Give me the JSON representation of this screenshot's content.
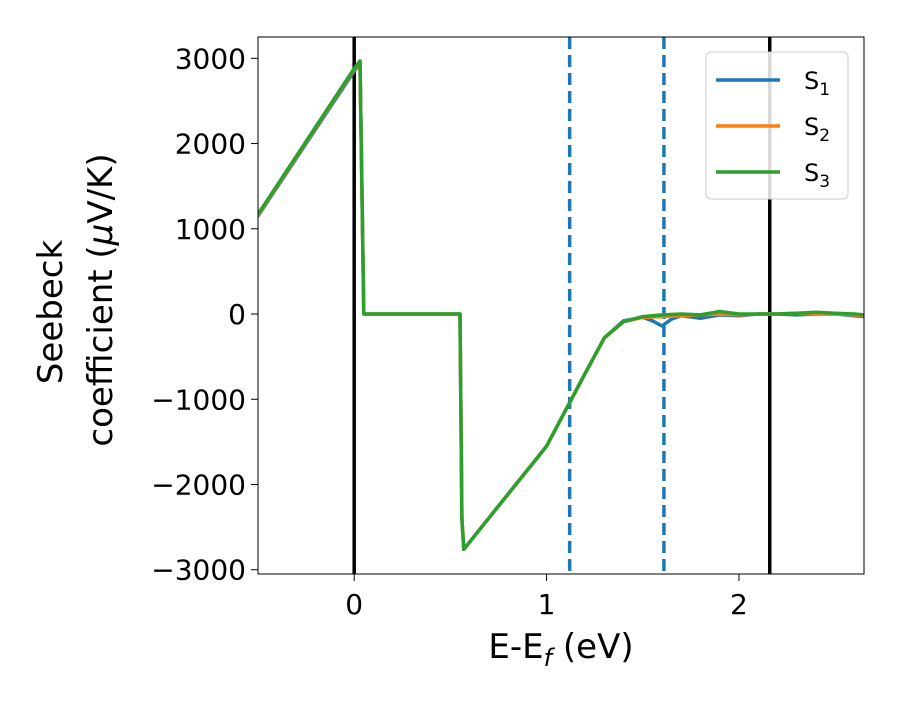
{
  "chart_data": {
    "type": "line",
    "title": "",
    "xlabel": "E-E",
    "xlabel_sub": "f",
    "xlabel_unit": " (eV)",
    "ylabel_line1": "Seebeck",
    "ylabel_line2": "coefficient  (",
    "ylabel_mu": "μ",
    "ylabel_unit": "V/K)",
    "xlim": [
      -0.5,
      2.65
    ],
    "ylim": [
      -3050,
      3250
    ],
    "xticks": [
      0,
      1,
      2
    ],
    "yticks": [
      -3000,
      -2000,
      -1000,
      0,
      1000,
      2000,
      3000
    ],
    "xtick_labels": [
      "0",
      "1",
      "2"
    ],
    "ytick_labels": [
      "−3000",
      "−2000",
      "−1000",
      "0",
      "1000",
      "2000",
      "3000"
    ],
    "grid": false,
    "legend_position": "top-right",
    "vlines": [
      {
        "x": 0.0,
        "style": "solid",
        "color": "#000000"
      },
      {
        "x": 2.16,
        "style": "solid",
        "color": "#000000"
      },
      {
        "x": 1.12,
        "style": "dashed",
        "color": "#1f77b4"
      },
      {
        "x": 1.61,
        "style": "dashed",
        "color": "#1f77b4"
      }
    ],
    "series": [
      {
        "name": "S",
        "sub": "1",
        "color": "#1f77b4",
        "x": [
          -0.5,
          0.0,
          0.03,
          0.05,
          0.55,
          0.56,
          0.57,
          1.0,
          1.2,
          1.3,
          1.4,
          1.5,
          1.55,
          1.6,
          1.65,
          1.7,
          1.8,
          1.9,
          2.0,
          2.1,
          2.2,
          2.3,
          2.4,
          2.5,
          2.6,
          2.65
        ],
        "y": [
          1150,
          2850,
          2950,
          0,
          0,
          -2400,
          -2760,
          -1550,
          -700,
          -280,
          -80,
          -40,
          -80,
          -140,
          -60,
          -20,
          -50,
          -10,
          -20,
          0,
          0,
          -10,
          0,
          0,
          -20,
          -30
        ]
      },
      {
        "name": "S",
        "sub": "2",
        "color": "#ff7f0e",
        "x": [
          -0.5,
          0.0,
          0.03,
          0.05,
          0.55,
          0.56,
          0.57,
          1.0,
          1.2,
          1.3,
          1.4,
          1.5,
          1.6,
          1.7,
          1.8,
          1.9,
          2.0,
          2.1,
          2.2,
          2.3,
          2.4,
          2.5,
          2.6,
          2.65
        ],
        "y": [
          1160,
          2870,
          2960,
          0,
          0,
          -2400,
          -2760,
          -1550,
          -700,
          -280,
          -90,
          -40,
          -30,
          -20,
          -10,
          0,
          -10,
          0,
          0,
          10,
          0,
          0,
          -10,
          -20
        ]
      },
      {
        "name": "S",
        "sub": "3",
        "color": "#2ca02c",
        "x": [
          -0.5,
          0.0,
          0.03,
          0.05,
          0.55,
          0.56,
          0.57,
          1.0,
          1.2,
          1.3,
          1.4,
          1.5,
          1.6,
          1.7,
          1.8,
          1.9,
          2.0,
          2.1,
          2.2,
          2.3,
          2.4,
          2.5,
          2.6,
          2.65
        ],
        "y": [
          1170,
          2880,
          2970,
          0,
          0,
          -2400,
          -2760,
          -1550,
          -700,
          -280,
          -90,
          -30,
          -10,
          0,
          -10,
          30,
          0,
          0,
          0,
          10,
          20,
          10,
          0,
          -10
        ]
      }
    ]
  }
}
